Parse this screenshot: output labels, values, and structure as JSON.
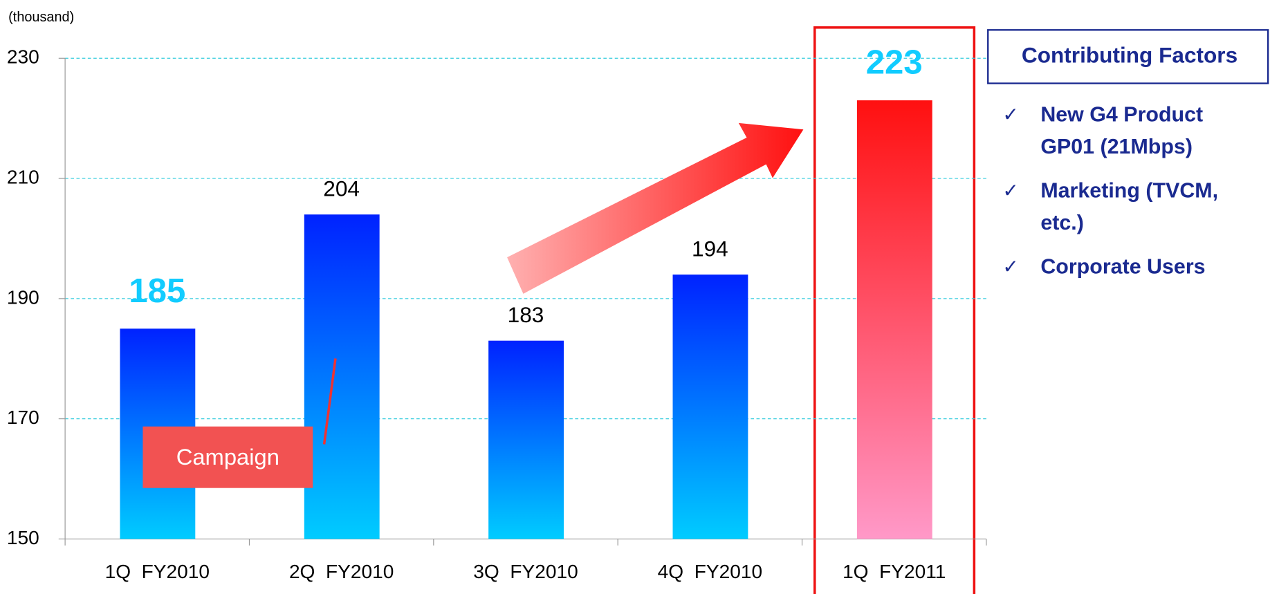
{
  "chart_data": {
    "type": "bar",
    "y_unit_label": "(thousand)",
    "categories": [
      "1Q  FY2010",
      "2Q  FY2010",
      "3Q  FY2010",
      "4Q  FY2010",
      "1Q  FY2011"
    ],
    "values": [
      185,
      204,
      183,
      194,
      223
    ],
    "bar_colors": [
      [
        "#0022ff",
        "#00ccff"
      ],
      [
        "#0022ff",
        "#00ccff"
      ],
      [
        "#0022ff",
        "#00ccff"
      ],
      [
        "#0022ff",
        "#00ccff"
      ],
      [
        "#ff1010",
        "#ff99c8"
      ]
    ],
    "emphasized_labels": [
      0,
      4
    ],
    "ylim": [
      150,
      230
    ],
    "yticks": [
      150,
      170,
      190,
      210,
      230
    ],
    "grid": true,
    "annotation": "Campaign",
    "factors": {
      "title": "Contributing Factors",
      "items": [
        [
          "New G4 Product",
          "GP01 (21Mbps)"
        ],
        [
          "Marketing (TVCM,",
          "etc.)"
        ],
        [
          "Corporate Users"
        ]
      ]
    }
  }
}
